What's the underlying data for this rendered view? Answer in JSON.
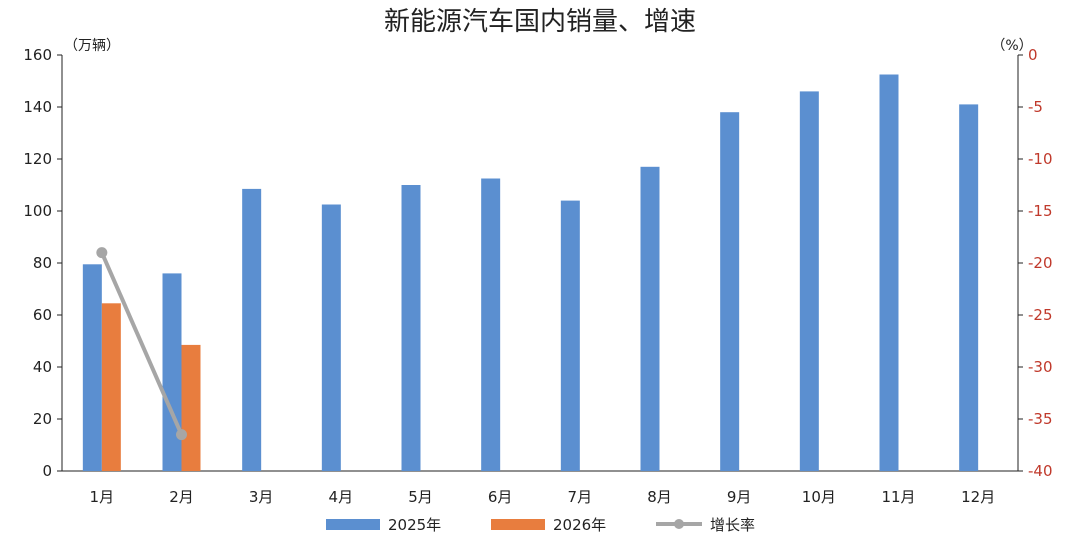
{
  "chart_data": {
    "type": "bar",
    "title": "新能源汽车国内销量、增速",
    "left_unit": "（万辆）",
    "right_unit": "（%）",
    "categories": [
      "1月",
      "2月",
      "3月",
      "4月",
      "5月",
      "6月",
      "7月",
      "8月",
      "9月",
      "10月",
      "11月",
      "12月"
    ],
    "ylim": [
      0,
      160
    ],
    "yticks": [
      0,
      20,
      40,
      60,
      80,
      100,
      120,
      140,
      160
    ],
    "y2lim": [
      -40,
      0
    ],
    "y2ticks": [
      0,
      -5,
      -10,
      -15,
      -20,
      -25,
      -30,
      -35,
      -40
    ],
    "series": [
      {
        "name": "2025年",
        "kind": "bar",
        "axis": "left",
        "color": "#5b8fd0",
        "values": [
          79.5,
          76,
          108.5,
          102.5,
          110,
          112.5,
          104,
          117,
          138,
          146,
          152.5,
          141
        ]
      },
      {
        "name": "2026年",
        "kind": "bar",
        "axis": "left",
        "color": "#e87d3e",
        "values": [
          64.5,
          48.5,
          null,
          null,
          null,
          null,
          null,
          null,
          null,
          null,
          null,
          null
        ]
      },
      {
        "name": "增长率",
        "kind": "line",
        "axis": "right",
        "color": "#a6a6a6",
        "values": [
          -19,
          -36.5,
          null,
          null,
          null,
          null,
          null,
          null,
          null,
          null,
          null,
          null
        ]
      }
    ],
    "axis_colors": {
      "left": "#222222",
      "right": "#c0392b"
    },
    "grid": false,
    "legend_position": "bottom"
  }
}
